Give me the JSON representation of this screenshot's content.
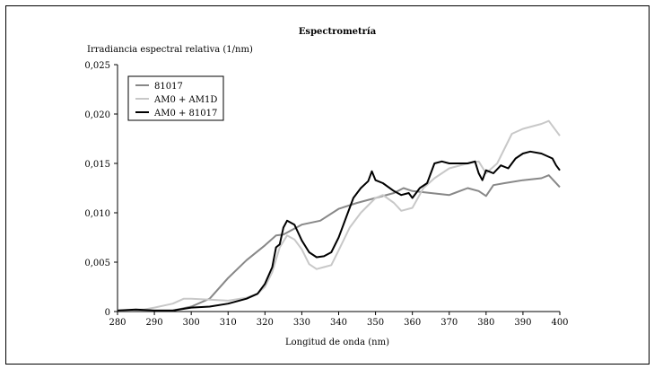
{
  "chart_data": {
    "type": "line",
    "title": "Espectrometría",
    "xlabel": "Longitud de onda (nm)",
    "ylabel": "Irradiancia espectral relativa (1/nm)",
    "xlim": [
      280,
      400
    ],
    "ylim": [
      0,
      0.025
    ],
    "xticks": [
      "280",
      "290",
      "300",
      "310",
      "320",
      "330",
      "340",
      "350",
      "360",
      "370",
      "380",
      "390",
      "400"
    ],
    "yticks": [
      "0",
      "0,005",
      "0,010",
      "0,015",
      "0,020",
      "0,025"
    ],
    "grid": false,
    "legend_position": "top-left",
    "series": [
      {
        "name": "81017",
        "color": "#888888",
        "x": [
          280,
          290,
          295,
          300,
          305,
          310,
          315,
          320,
          323,
          325,
          330,
          335,
          340,
          345,
          350,
          355,
          357.6,
          360,
          365,
          370,
          375,
          378,
          380,
          382,
          385,
          390,
          395,
          397,
          400
        ],
        "y": [
          0.0001,
          0.0001,
          0.0001,
          0.0005,
          0.0013,
          0.0034,
          0.0052,
          0.0067,
          0.0077,
          0.0078,
          0.0088,
          0.0092,
          0.0104,
          0.011,
          0.0115,
          0.012,
          0.0125,
          0.0122,
          0.012,
          0.0118,
          0.0125,
          0.0122,
          0.0117,
          0.0128,
          0.013,
          0.0133,
          0.0135,
          0.0138,
          0.0126
        ]
      },
      {
        "name": "AM0 + AM1D",
        "color": "#c8c8c8",
        "x": [
          280,
          287,
          290,
          295,
          298,
          300,
          305,
          310,
          315,
          318,
          320,
          322,
          324,
          326,
          328,
          330,
          332,
          334,
          336,
          338,
          340,
          343,
          346,
          350,
          352,
          355,
          357,
          360,
          363,
          366,
          370,
          375,
          378,
          380,
          383,
          385,
          387,
          390,
          395,
          397,
          400
        ],
        "y": [
          0.0001,
          0.0002,
          0.0004,
          0.0008,
          0.0013,
          0.0013,
          0.0012,
          0.0011,
          0.0014,
          0.0018,
          0.0025,
          0.004,
          0.0065,
          0.0077,
          0.0073,
          0.0063,
          0.0048,
          0.0043,
          0.0045,
          0.0047,
          0.0062,
          0.0085,
          0.01,
          0.0115,
          0.0118,
          0.011,
          0.0102,
          0.0105,
          0.0125,
          0.0135,
          0.0145,
          0.015,
          0.0152,
          0.014,
          0.015,
          0.0165,
          0.018,
          0.0185,
          0.019,
          0.0193,
          0.0178
        ]
      },
      {
        "name": "AM0 + 81017",
        "color": "#000000",
        "x": [
          280,
          285,
          290,
          295,
          300,
          305,
          310,
          315,
          318,
          320,
          322,
          323,
          324,
          325,
          326,
          328,
          330,
          332,
          334,
          336,
          338,
          340,
          342,
          344,
          346,
          348,
          349,
          350,
          352,
          355,
          357,
          359,
          360,
          362,
          364,
          366,
          368,
          370,
          375,
          377,
          378,
          379,
          380,
          382,
          384,
          386,
          388,
          390,
          392,
          395,
          398,
          399,
          400
        ],
        "y": [
          0.0001,
          0.0002,
          0.0001,
          0.0001,
          0.0004,
          0.0005,
          0.0008,
          0.0013,
          0.0018,
          0.0028,
          0.0045,
          0.0065,
          0.0068,
          0.0085,
          0.0092,
          0.0088,
          0.0072,
          0.006,
          0.0055,
          0.0056,
          0.006,
          0.0075,
          0.0095,
          0.0115,
          0.0125,
          0.0132,
          0.0142,
          0.0133,
          0.013,
          0.0122,
          0.0118,
          0.012,
          0.0115,
          0.0125,
          0.013,
          0.015,
          0.0152,
          0.015,
          0.015,
          0.0152,
          0.014,
          0.0133,
          0.0143,
          0.014,
          0.0148,
          0.0145,
          0.0155,
          0.016,
          0.0162,
          0.016,
          0.0155,
          0.0148,
          0.0143
        ]
      }
    ]
  }
}
